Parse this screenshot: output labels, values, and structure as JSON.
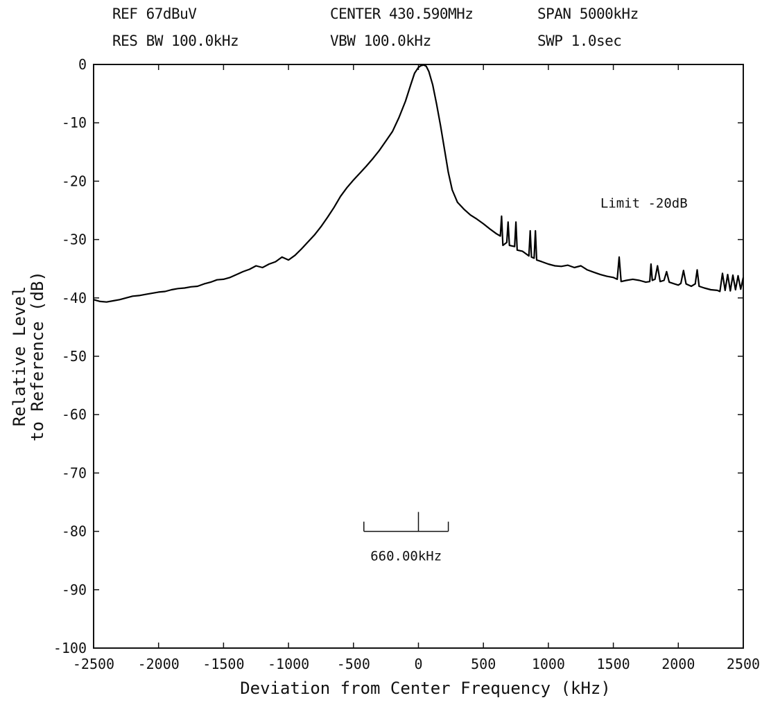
{
  "header": {
    "ref": "REF 67dBuV",
    "center": "CENTER 430.590MHz",
    "span": "SPAN 5000kHz",
    "res_bw": "RES BW 100.0kHz",
    "vbw": "VBW 100.0kHz",
    "swp": "SWP 1.0sec"
  },
  "chart_data": {
    "type": "line",
    "title": "",
    "xlabel": "Deviation from Center Frequency (kHz)",
    "ylabel_line1": "Relative Level",
    "ylabel_line2": "to Reference (dB)",
    "xlim": [
      -2500,
      2500
    ],
    "ylim": [
      -100,
      0
    ],
    "x_ticks": [
      -2500,
      -2000,
      -1500,
      -1000,
      -500,
      0,
      500,
      1000,
      1500,
      2000,
      2500
    ],
    "y_ticks": [
      0,
      -10,
      -20,
      -30,
      -40,
      -50,
      -60,
      -70,
      -80,
      -90,
      -100
    ],
    "grid": false,
    "annotations": {
      "limit": "Limit -20dB",
      "span_marker_label": "660.00kHz",
      "span_marker": {
        "x_start": -420,
        "x_end": 230,
        "x_center": 0,
        "y": -80
      }
    },
    "series": [
      {
        "color": "#000000",
        "points": [
          [
            -2500,
            -40.3
          ],
          [
            -2450,
            -40.6
          ],
          [
            -2400,
            -40.7
          ],
          [
            -2350,
            -40.5
          ],
          [
            -2300,
            -40.3
          ],
          [
            -2250,
            -40.0
          ],
          [
            -2200,
            -39.7
          ],
          [
            -2150,
            -39.6
          ],
          [
            -2100,
            -39.4
          ],
          [
            -2050,
            -39.2
          ],
          [
            -2000,
            -39.0
          ],
          [
            -1950,
            -38.9
          ],
          [
            -1900,
            -38.6
          ],
          [
            -1850,
            -38.4
          ],
          [
            -1800,
            -38.3
          ],
          [
            -1750,
            -38.1
          ],
          [
            -1700,
            -38.0
          ],
          [
            -1650,
            -37.6
          ],
          [
            -1600,
            -37.3
          ],
          [
            -1550,
            -36.9
          ],
          [
            -1500,
            -36.8
          ],
          [
            -1450,
            -36.5
          ],
          [
            -1400,
            -36.0
          ],
          [
            -1350,
            -35.5
          ],
          [
            -1300,
            -35.1
          ],
          [
            -1250,
            -34.5
          ],
          [
            -1200,
            -34.8
          ],
          [
            -1150,
            -34.2
          ],
          [
            -1100,
            -33.8
          ],
          [
            -1050,
            -33.0
          ],
          [
            -1000,
            -33.5
          ],
          [
            -950,
            -32.7
          ],
          [
            -900,
            -31.6
          ],
          [
            -850,
            -30.4
          ],
          [
            -800,
            -29.2
          ],
          [
            -750,
            -27.8
          ],
          [
            -700,
            -26.2
          ],
          [
            -650,
            -24.5
          ],
          [
            -600,
            -22.6
          ],
          [
            -550,
            -21.1
          ],
          [
            -500,
            -19.8
          ],
          [
            -450,
            -18.6
          ],
          [
            -400,
            -17.4
          ],
          [
            -350,
            -16.1
          ],
          [
            -300,
            -14.7
          ],
          [
            -250,
            -13.1
          ],
          [
            -200,
            -11.5
          ],
          [
            -150,
            -9.1
          ],
          [
            -100,
            -6.3
          ],
          [
            -60,
            -3.5
          ],
          [
            -30,
            -1.5
          ],
          [
            0,
            -0.5
          ],
          [
            20,
            -0.2
          ],
          [
            40,
            -0.1
          ],
          [
            60,
            -0.3
          ],
          [
            80,
            -1.2
          ],
          [
            110,
            -3.5
          ],
          [
            140,
            -6.8
          ],
          [
            170,
            -10.5
          ],
          [
            200,
            -14.5
          ],
          [
            230,
            -18.5
          ],
          [
            260,
            -21.5
          ],
          [
            300,
            -23.6
          ],
          [
            350,
            -24.8
          ],
          [
            400,
            -25.8
          ],
          [
            450,
            -26.5
          ],
          [
            500,
            -27.3
          ],
          [
            550,
            -28.2
          ],
          [
            600,
            -29.0
          ],
          [
            630,
            -29.4
          ],
          [
            640,
            -26.0
          ],
          [
            650,
            -31.0
          ],
          [
            680,
            -30.5
          ],
          [
            690,
            -27.0
          ],
          [
            700,
            -31.0
          ],
          [
            740,
            -31.2
          ],
          [
            750,
            -27.0
          ],
          [
            760,
            -31.8
          ],
          [
            800,
            -32.0
          ],
          [
            850,
            -32.8
          ],
          [
            860,
            -28.5
          ],
          [
            870,
            -33.0
          ],
          [
            890,
            -33.2
          ],
          [
            900,
            -28.5
          ],
          [
            910,
            -33.5
          ],
          [
            950,
            -33.8
          ],
          [
            1000,
            -34.2
          ],
          [
            1050,
            -34.5
          ],
          [
            1100,
            -34.6
          ],
          [
            1150,
            -34.4
          ],
          [
            1200,
            -34.8
          ],
          [
            1250,
            -34.5
          ],
          [
            1300,
            -35.2
          ],
          [
            1350,
            -35.6
          ],
          [
            1400,
            -36.0
          ],
          [
            1450,
            -36.3
          ],
          [
            1500,
            -36.5
          ],
          [
            1530,
            -36.8
          ],
          [
            1545,
            -33.0
          ],
          [
            1560,
            -37.2
          ],
          [
            1600,
            -37.0
          ],
          [
            1650,
            -36.8
          ],
          [
            1700,
            -37.0
          ],
          [
            1750,
            -37.3
          ],
          [
            1780,
            -37.2
          ],
          [
            1790,
            -34.2
          ],
          [
            1800,
            -37.0
          ],
          [
            1820,
            -36.8
          ],
          [
            1840,
            -34.5
          ],
          [
            1860,
            -37.2
          ],
          [
            1890,
            -37.0
          ],
          [
            1910,
            -35.5
          ],
          [
            1930,
            -37.3
          ],
          [
            1970,
            -37.6
          ],
          [
            2000,
            -37.8
          ],
          [
            2020,
            -37.5
          ],
          [
            2040,
            -35.3
          ],
          [
            2060,
            -37.6
          ],
          [
            2100,
            -38.0
          ],
          [
            2130,
            -37.6
          ],
          [
            2145,
            -35.2
          ],
          [
            2160,
            -38.0
          ],
          [
            2200,
            -38.3
          ],
          [
            2250,
            -38.6
          ],
          [
            2300,
            -38.7
          ],
          [
            2320,
            -38.9
          ],
          [
            2340,
            -35.8
          ],
          [
            2360,
            -38.7
          ],
          [
            2380,
            -36.0
          ],
          [
            2400,
            -38.8
          ],
          [
            2420,
            -36.1
          ],
          [
            2440,
            -38.6
          ],
          [
            2460,
            -36.2
          ],
          [
            2480,
            -38.5
          ],
          [
            2500,
            -36.5
          ]
        ]
      }
    ]
  }
}
